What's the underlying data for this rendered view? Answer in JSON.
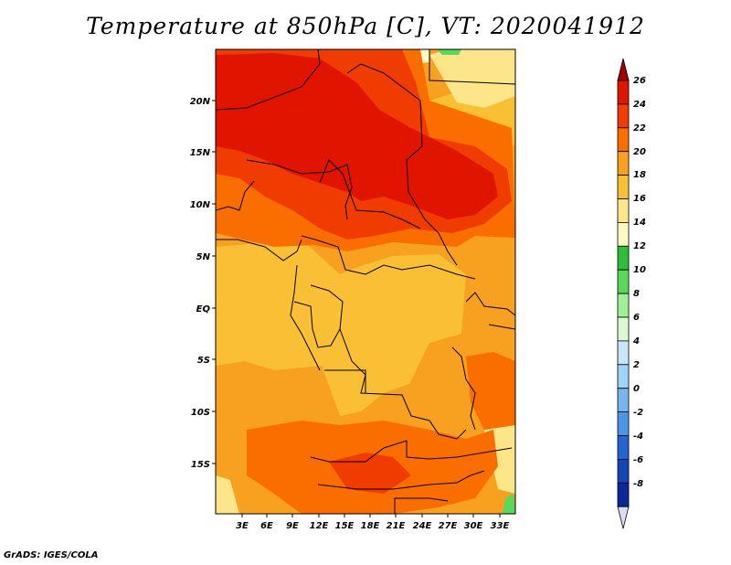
{
  "title": "Temperature at 850hPa [C], VT: 2020041912",
  "footer": "GrADS: IGES/COLA",
  "map": {
    "lat_labels": [
      "20N",
      "15N",
      "10N",
      "5N",
      "EQ",
      "5S",
      "10S",
      "15S"
    ],
    "lon_labels": [
      "3E",
      "6E",
      "9E",
      "12E",
      "15E",
      "18E",
      "21E",
      "24E",
      "27E",
      "30E",
      "33E"
    ]
  },
  "colorbar": {
    "labels": [
      "26",
      "24",
      "22",
      "20",
      "18",
      "16",
      "14",
      "12",
      "10",
      "8",
      "6",
      "4",
      "2",
      "0",
      "-2",
      "-4",
      "-6",
      "-8"
    ],
    "colors": [
      "#a00000",
      "#e11400",
      "#f03c00",
      "#fa6e00",
      "#f8a020",
      "#fac035",
      "#fde68a",
      "#fff8c4",
      "#2fbe3c",
      "#5ad85a",
      "#a2f096",
      "#dcfad2",
      "#c8e6fa",
      "#a0d2fa",
      "#78b4f0",
      "#4b96e6",
      "#2364d2",
      "#1446b4",
      "#0a2896",
      "#000064"
    ]
  }
}
